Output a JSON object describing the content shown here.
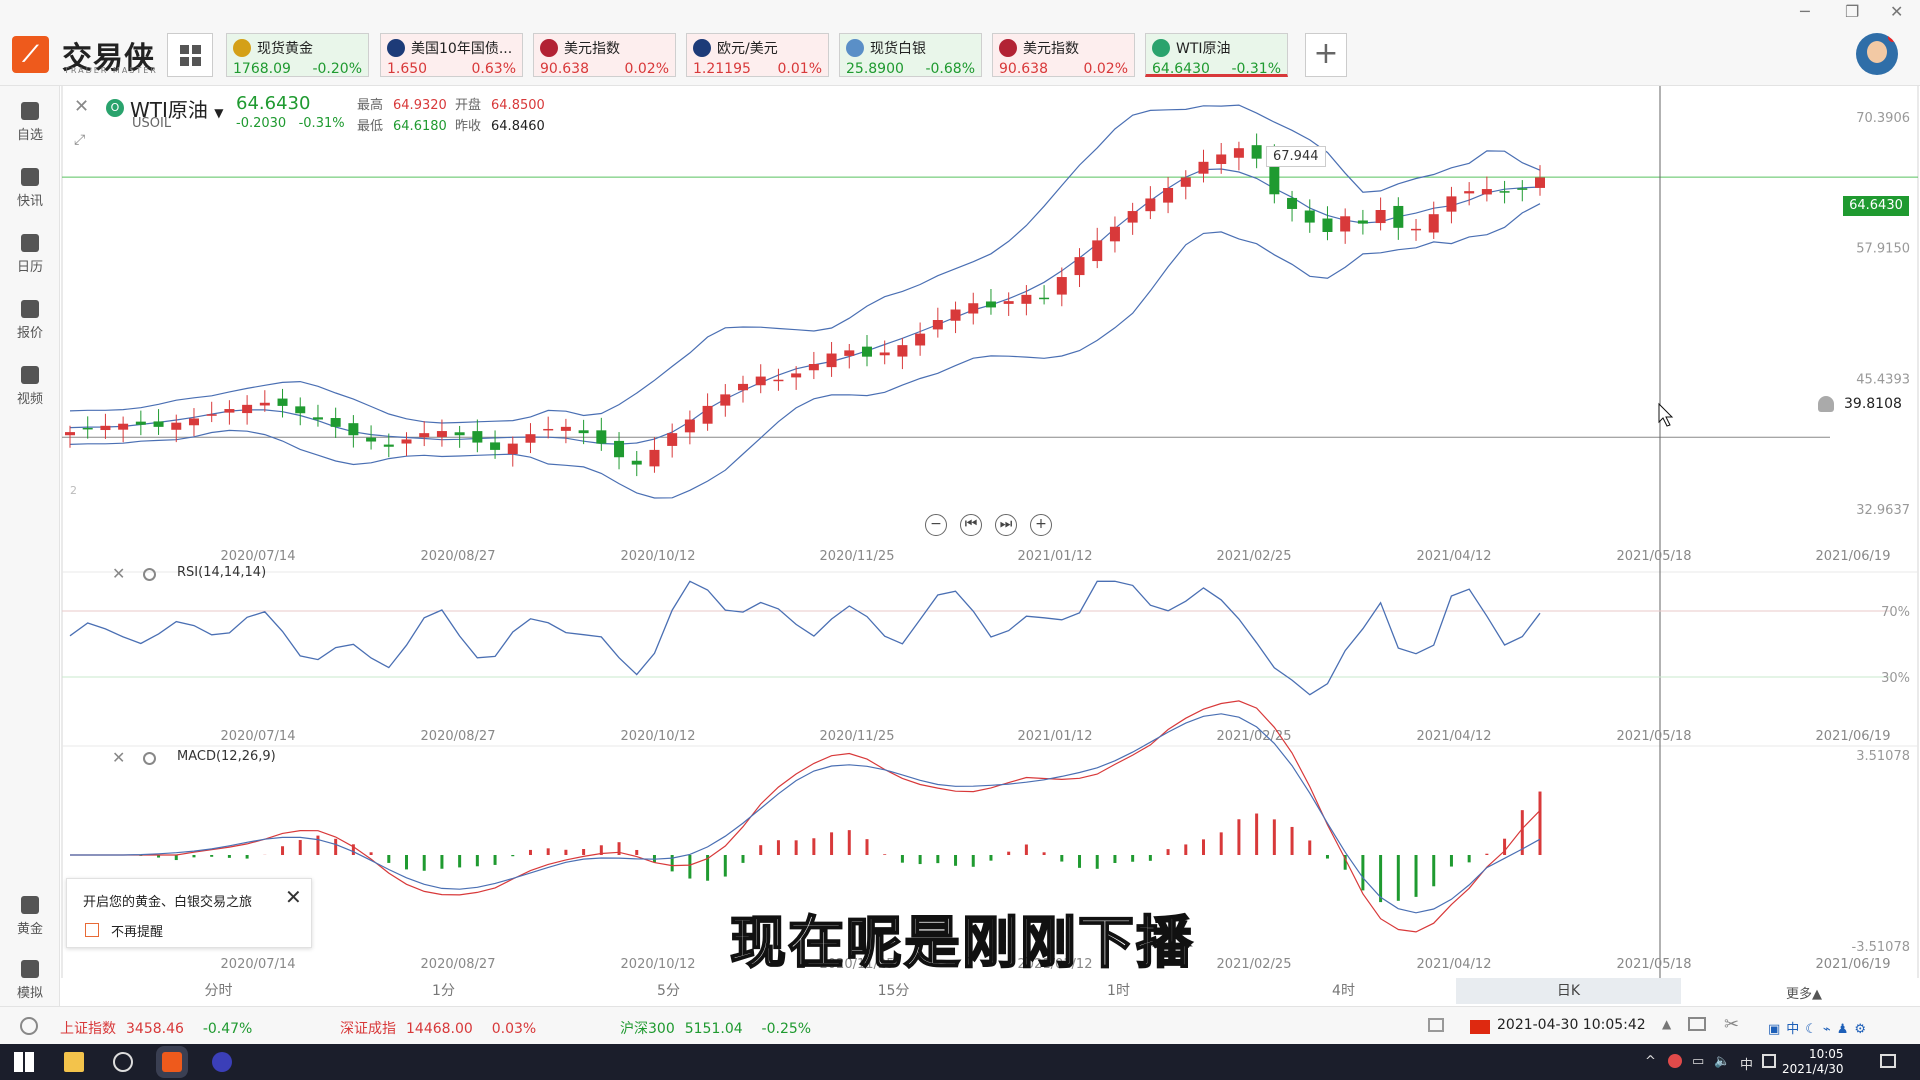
{
  "app": {
    "logo_text": "交易侠",
    "logo_sub": "TRADER MASTER"
  },
  "quotes": [
    {
      "name": "现货黄金",
      "price": "1768.09",
      "change": "-0.20%",
      "dir": "dn",
      "icon_color": "#d4a017"
    },
    {
      "name": "美国10年国债...",
      "price": "1.650",
      "change": "0.63%",
      "dir": "up",
      "icon_color": "#1d3b78"
    },
    {
      "name": "美元指数",
      "price": "90.638",
      "change": "0.02%",
      "dir": "up",
      "icon_color": "#b22234"
    },
    {
      "name": "欧元/美元",
      "price": "1.21195",
      "change": "0.01%",
      "dir": "up",
      "icon_color": "#1d3b78"
    },
    {
      "name": "现货白银",
      "price": "25.8900",
      "change": "-0.68%",
      "dir": "dn",
      "icon_color": "#5a8fc7"
    },
    {
      "name": "美元指数",
      "price": "90.638",
      "change": "0.02%",
      "dir": "up",
      "icon_color": "#b22234"
    },
    {
      "name": "WTI原油",
      "price": "64.6430",
      "change": "-0.31%",
      "dir": "dn",
      "icon_color": "#2aa36d"
    }
  ],
  "sidebar": {
    "items": [
      {
        "label": "自选",
        "icon": "bookmark-icon"
      },
      {
        "label": "快讯",
        "icon": "news-icon"
      },
      {
        "label": "日历",
        "icon": "calendar-icon"
      },
      {
        "label": "报价",
        "icon": "quote-chart-icon"
      },
      {
        "label": "视频",
        "icon": "video-icon"
      },
      {
        "label": "黄金",
        "icon": "gold-icon"
      },
      {
        "label": "模拟",
        "icon": "simulate-icon"
      }
    ]
  },
  "symbol": {
    "name": "WTI原油",
    "code": "USOIL",
    "last": "64.6430",
    "change": "-0.2030",
    "change_pct": "-0.31%",
    "stats": {
      "high_label": "最高",
      "high": "64.9320",
      "open_label": "开盘",
      "open": "64.8500",
      "low_label": "最低",
      "low": "64.6180",
      "prev_label": "昨收",
      "prev": "64.8460"
    }
  },
  "chart": {
    "peak_label": "67.944",
    "current_price_tag": "64.6430",
    "alert_line_value": "39.8108",
    "y_ticks": [
      "70.3906",
      "57.9150",
      "45.4393",
      "32.9637"
    ],
    "x_ticks": [
      "2020/07/14",
      "2020/08/27",
      "2020/10/12",
      "2020/11/25",
      "2021/01/12",
      "2021/02/25",
      "2021/04/12",
      "2021/05/18",
      "2021/06/19"
    ],
    "rsi_title": "RSI(14,14,14)",
    "rsi_levels": [
      "70%",
      "30%"
    ],
    "macd_title": "MACD(12,26,9)",
    "macd_top": "3.51078",
    "macd_bottom": "-3.51078",
    "subpane_label": "2"
  },
  "timeframes": {
    "items": [
      "分时",
      "1分",
      "5分",
      "15分",
      "1时",
      "4时",
      "日K"
    ],
    "active": "日K",
    "more": "更多▲"
  },
  "popup": {
    "title": "开启您的黄金、白银交易之旅",
    "checkbox_label": "不再提醒"
  },
  "subtitle": "现在呢是刚刚下播",
  "indices": [
    {
      "name": "上证指数",
      "value": "3458.46",
      "change": "-0.47%"
    },
    {
      "name": "深证成指",
      "value": "14468.00",
      "change": "0.03%"
    },
    {
      "name": "沪深300",
      "value": "5151.04",
      "change": "-0.25%"
    }
  ],
  "status_datetime": "2021-04-30 10:05:42",
  "taskbar": {
    "time": "10:05",
    "date": "2021/4/30",
    "ime": "中"
  },
  "colors": {
    "up": "#d8393a",
    "down": "#1f9a30",
    "accent": "#ee5a1c"
  },
  "chart_data": {
    "type": "candlestick",
    "x_range": [
      "2020/07/14",
      "2021/06/19"
    ],
    "ylim": [
      30,
      72
    ],
    "approx_close_series": [
      40.3,
      40.6,
      40.9,
      41.1,
      41.0,
      40.8,
      41.2,
      41.6,
      42.0,
      42.5,
      42.9,
      43.1,
      42.8,
      42.1,
      41.5,
      40.8,
      40.0,
      39.4,
      38.9,
      39.6,
      40.2,
      40.4,
      40.0,
      39.3,
      38.6,
      39.2,
      40.1,
      40.6,
      40.8,
      40.2,
      39.2,
      37.9,
      37.2,
      38.6,
      40.2,
      41.5,
      42.8,
      43.9,
      44.9,
      45.6,
      45.3,
      45.9,
      46.8,
      47.8,
      48.1,
      47.5,
      47.9,
      48.6,
      49.7,
      51.0,
      52.0,
      52.6,
      52.2,
      52.8,
      53.4,
      53.1,
      55.1,
      57.0,
      58.6,
      59.9,
      61.4,
      62.6,
      63.6,
      64.6,
      66.1,
      66.8,
      67.4,
      66.4,
      63.0,
      61.6,
      60.3,
      59.4,
      60.9,
      60.2,
      61.5,
      59.8,
      59.7,
      61.1,
      62.8,
      63.3,
      63.5,
      63.2,
      63.5,
      64.6
    ],
    "rsi_levels": [
      70,
      30
    ],
    "macd_range": [
      -3.51078,
      3.51078
    ]
  }
}
